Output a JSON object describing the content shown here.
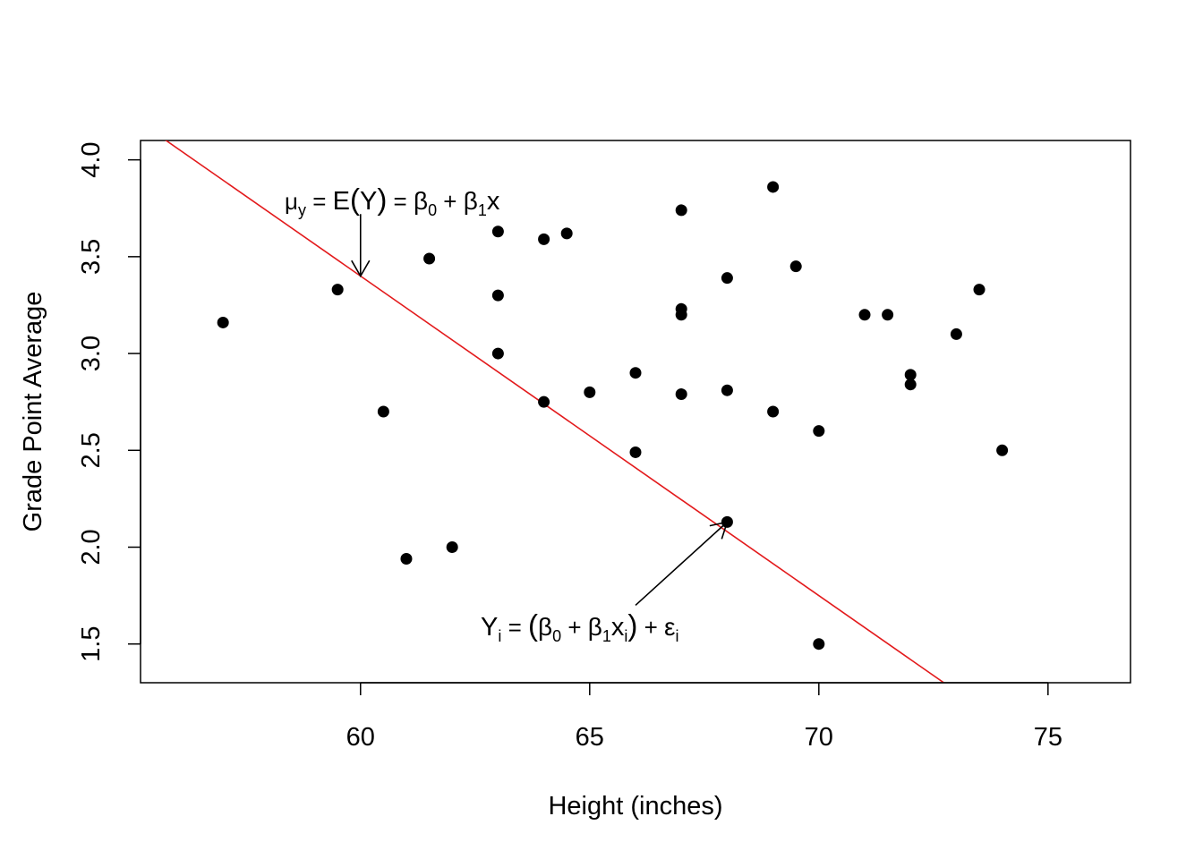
{
  "chart_data": {
    "type": "scatter",
    "title": "",
    "xlabel": "Height (inches)",
    "ylabel": "Grade Point Average",
    "xlim": [
      55.2,
      76.8
    ],
    "ylim": [
      1.3,
      4.1
    ],
    "x_ticks": [
      60,
      65,
      70,
      75
    ],
    "y_ticks": [
      1.5,
      2.0,
      2.5,
      3.0,
      3.5,
      4.0
    ],
    "x_tick_labels": [
      "60",
      "65",
      "70",
      "75"
    ],
    "y_tick_labels": [
      "1.5",
      "2.0",
      "2.5",
      "3.0",
      "3.5",
      "4.0"
    ],
    "grid": false,
    "points": [
      {
        "x": 57,
        "y": 3.16
      },
      {
        "x": 59.5,
        "y": 3.33
      },
      {
        "x": 60.5,
        "y": 2.7
      },
      {
        "x": 61,
        "y": 1.94
      },
      {
        "x": 61.5,
        "y": 3.49
      },
      {
        "x": 62,
        "y": 2.0
      },
      {
        "x": 63,
        "y": 3.63
      },
      {
        "x": 63,
        "y": 3.3
      },
      {
        "x": 63,
        "y": 3.0
      },
      {
        "x": 64,
        "y": 3.59
      },
      {
        "x": 64,
        "y": 2.75
      },
      {
        "x": 64.5,
        "y": 3.62
      },
      {
        "x": 65,
        "y": 2.8
      },
      {
        "x": 66,
        "y": 2.9
      },
      {
        "x": 66,
        "y": 2.49
      },
      {
        "x": 67,
        "y": 3.74
      },
      {
        "x": 67,
        "y": 3.23
      },
      {
        "x": 67,
        "y": 3.2
      },
      {
        "x": 67,
        "y": 2.79
      },
      {
        "x": 68,
        "y": 3.39
      },
      {
        "x": 68,
        "y": 2.81
      },
      {
        "x": 68,
        "y": 2.13
      },
      {
        "x": 69,
        "y": 3.86
      },
      {
        "x": 69,
        "y": 2.7
      },
      {
        "x": 69.5,
        "y": 3.45
      },
      {
        "x": 70,
        "y": 2.6
      },
      {
        "x": 70,
        "y": 1.5
      },
      {
        "x": 71,
        "y": 3.2
      },
      {
        "x": 71.5,
        "y": 3.2
      },
      {
        "x": 72,
        "y": 2.89
      },
      {
        "x": 72,
        "y": 2.84
      },
      {
        "x": 73,
        "y": 3.1
      },
      {
        "x": 73.5,
        "y": 3.33
      },
      {
        "x": 74,
        "y": 2.5
      }
    ],
    "regression_line": {
      "intercept": 13.3,
      "slope": -0.165,
      "color": "#e31a1c"
    },
    "annotations": [
      {
        "name": "mean-equation",
        "arrow_to": {
          "x": 60,
          "y": 3.4
        },
        "arrow_from": {
          "x": 60,
          "y": 3.72
        },
        "parts": {
          "mu": "μ",
          "mu_sub": "y",
          "eq1": " = ",
          "E": "E",
          "lp": "(",
          "Y": "Y",
          "rp": ")",
          "eq2": " = ",
          "b0": "β",
          "b0_sub": "0",
          "plus": " + ",
          "b1": "β",
          "b1_sub": "1",
          "x": "x"
        }
      },
      {
        "name": "observation-equation",
        "arrow_to": {
          "x": 68,
          "y": 2.13
        },
        "arrow_from": {
          "x": 66,
          "y": 1.7
        },
        "parts": {
          "Y": "Y",
          "Y_sub": "i",
          "eq": " = ",
          "lp": "(",
          "b0": "β",
          "b0_sub": "0",
          "plus1": " + ",
          "b1": "β",
          "b1_sub": "1",
          "x": "x",
          "x_sub": "i",
          "rp": ")",
          "plus2": " + ",
          "eps": "ε",
          "eps_sub": "i"
        }
      }
    ]
  },
  "colors": {
    "point": "#000000",
    "line": "#e31a1c",
    "axis": "#000000"
  }
}
